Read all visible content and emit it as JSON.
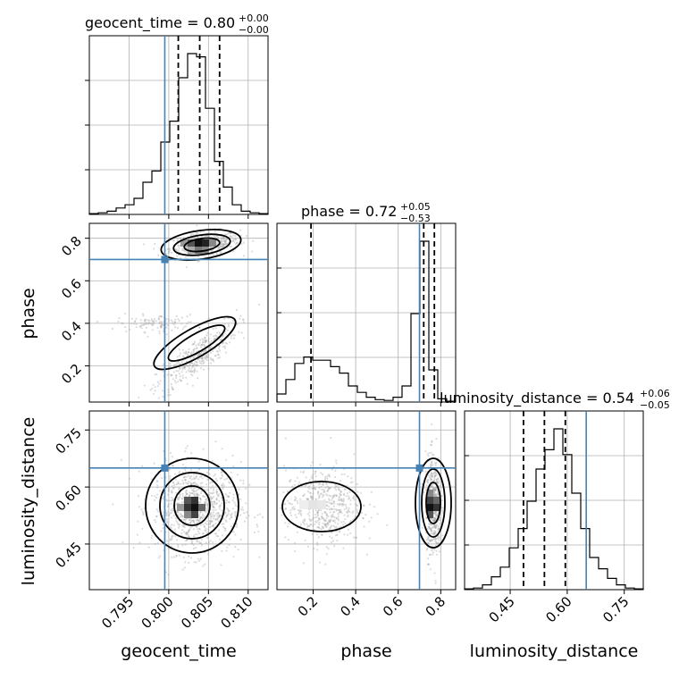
{
  "chart_data": {
    "type": "corner",
    "parameters": [
      {
        "name": "geocent_time",
        "title": {
          "text": "geocent_time = 0.80",
          "plus": "+0.00",
          "minus": "−0.00"
        },
        "range": [
          0.79,
          0.8125
        ],
        "truth": 0.7995,
        "quantiles": [
          0.8012,
          0.8039,
          0.8064
        ],
        "ticks": [
          "0.795",
          "0.800",
          "0.805",
          "0.810"
        ],
        "tick_values": [
          0.795,
          0.8,
          0.805,
          0.81
        ],
        "hist_heights": [
          0.005,
          0.01,
          0.02,
          0.04,
          0.06,
          0.1,
          0.2,
          0.27,
          0.45,
          0.58,
          0.85,
          1.0,
          0.98,
          0.66,
          0.33,
          0.17,
          0.06,
          0.02,
          0.01,
          0.005
        ]
      },
      {
        "name": "phase",
        "title": {
          "text": "phase = 0.72",
          "plus": "+0.05",
          "minus": "−0.53"
        },
        "range": [
          0.03,
          0.87
        ],
        "truth": 0.7,
        "quantiles": [
          0.19,
          0.72,
          0.77
        ],
        "ticks": [
          "0.2",
          "0.4",
          "0.6",
          "0.8"
        ],
        "tick_values": [
          0.2,
          0.4,
          0.6,
          0.8
        ],
        "hist_heights": [
          0.05,
          0.14,
          0.24,
          0.28,
          0.26,
          0.26,
          0.22,
          0.18,
          0.1,
          0.06,
          0.03,
          0.015,
          0.01,
          0.03,
          0.1,
          0.55,
          1.0,
          0.2,
          0.02,
          0.005
        ]
      },
      {
        "name": "luminosity_distance",
        "title": {
          "text": "luminosity_distance = 0.54",
          "plus": "+0.06",
          "minus": "−0.05"
        },
        "range": [
          0.33,
          0.8
        ],
        "truth": 0.65,
        "quantiles": [
          0.485,
          0.54,
          0.595
        ],
        "ticks": [
          "0.45",
          "0.60",
          "0.75"
        ],
        "tick_values": [
          0.45,
          0.6,
          0.75
        ],
        "hist_heights": [
          0.005,
          0.01,
          0.03,
          0.08,
          0.14,
          0.26,
          0.38,
          0.55,
          0.75,
          0.87,
          1.0,
          0.84,
          0.6,
          0.38,
          0.2,
          0.13,
          0.07,
          0.03,
          0.01,
          0.005
        ]
      }
    ],
    "axis_labels": {
      "x": [
        "geocent_time",
        "phase",
        "luminosity_distance"
      ],
      "y": [
        "phase",
        "luminosity_distance"
      ]
    },
    "colors": {
      "truth": "#4682b4",
      "contour": "#000000",
      "hist": "#000000",
      "scatter": "#9a9a9a",
      "grid": "#b0b0b0"
    },
    "grid": true,
    "truth_points": [
      {
        "panel": "phase_vs_geocent_time",
        "x": 0.7995,
        "y": 0.7
      },
      {
        "panel": "luminosity_distance_vs_geocent_time",
        "x": 0.7995,
        "y": 0.65
      },
      {
        "panel": "luminosity_distance_vs_phase",
        "x": 0.7,
        "y": 0.65
      }
    ]
  }
}
